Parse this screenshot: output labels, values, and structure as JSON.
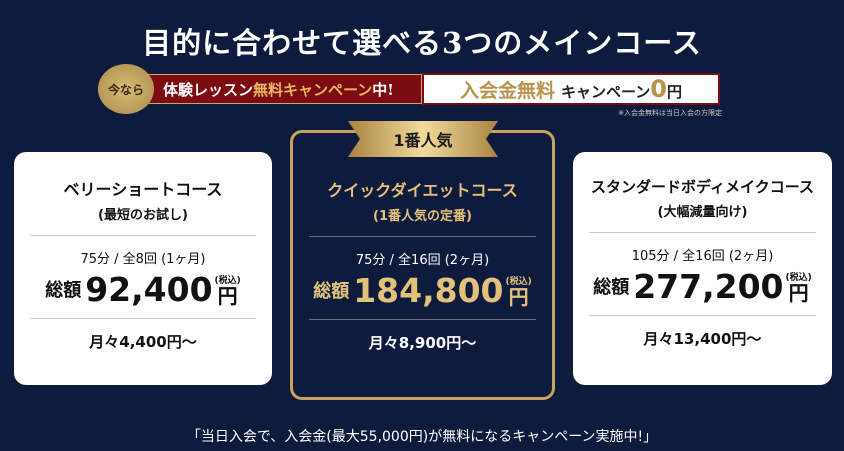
{
  "title": "目的に合わせて選べる3つのメインコース",
  "banner": {
    "circle": "今なら",
    "red_text_1": "体験レッスン",
    "red_text_gold": "無料キャンペーン",
    "red_text_2": "中!",
    "white_gold": "入会金無料",
    "white_text": "キャンペーン",
    "zero": "0",
    "yen": "円",
    "note": "※入会金無料は当日入会の方限定"
  },
  "courses": [
    {
      "name": "ベリーショートコース",
      "sub": "(最短のお試し)",
      "duration": "75分 / 全8回 (1ヶ月)",
      "total_label": "総額",
      "price": "92,400",
      "tax": "(税込)",
      "yen": "円",
      "monthly": "月々4,400円〜"
    },
    {
      "badge": "1番人気",
      "name": "クイックダイエットコース",
      "sub": "(1番人気の定番)",
      "duration": "75分 / 全16回 (2ヶ月)",
      "total_label": "総額",
      "price": "184,800",
      "tax": "(税込)",
      "yen": "円",
      "monthly": "月々8,900円〜"
    },
    {
      "name": "スタンダードボディメイクコース",
      "sub": "(大幅減量向け)",
      "duration": "105分 / 全16回 (2ヶ月)",
      "total_label": "総額",
      "price": "277,200",
      "tax": "(税込)",
      "yen": "円",
      "monthly": "月々13,400円〜"
    }
  ],
  "footer": "「当日入会で、入会金(最大55,000円)が無料になるキャンペーン実施中!」",
  "colors": {
    "background": "#0f1b3d",
    "gold": "#c9a45c",
    "red": "#7d0c12"
  }
}
